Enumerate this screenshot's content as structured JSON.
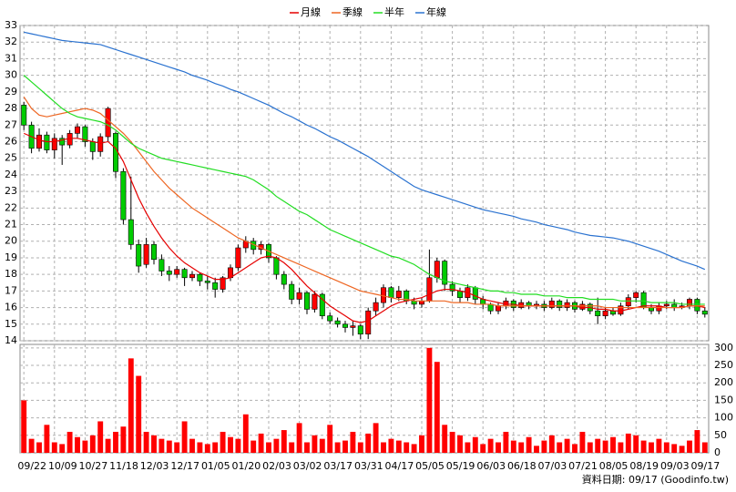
{
  "chart_data": [
    {
      "type": "candlestick",
      "categories": [
        "09/22",
        null,
        null,
        null,
        "10/09",
        null,
        null,
        null,
        "10/27",
        null,
        null,
        null,
        "11/18",
        null,
        null,
        null,
        "12/03",
        null,
        null,
        null,
        "12/17",
        null,
        null,
        null,
        "01/05",
        null,
        null,
        null,
        "01/20",
        null,
        null,
        null,
        "02/03",
        null,
        null,
        null,
        "03/02",
        null,
        null,
        null,
        "03/17",
        null,
        null,
        null,
        "03/31",
        null,
        null,
        null,
        "04/17",
        null,
        null,
        null,
        "05/05",
        null,
        null,
        null,
        "05/19",
        null,
        null,
        null,
        "06/03",
        null,
        null,
        null,
        "06/18",
        null,
        null,
        null,
        "07/03",
        null,
        null,
        null,
        "07/21",
        null,
        null,
        null,
        "08/05",
        null,
        null,
        null,
        "08/19",
        null,
        null,
        null,
        "09/03",
        null,
        null,
        null,
        "09/17",
        null
      ],
      "open": [
        28.2,
        27.0,
        25.6,
        26.4,
        25.5,
        26.2,
        25.8,
        26.5,
        26.9,
        26.0,
        25.4,
        26.3,
        26.5,
        24.2,
        21.3,
        19.8,
        18.6,
        19.8,
        18.9,
        18.2,
        18.0,
        18.3,
        17.8,
        18.0,
        17.6,
        17.5,
        17.1,
        17.8,
        18.4,
        19.6,
        20.0,
        19.5,
        19.8,
        19.0,
        18.0,
        17.4,
        16.5,
        16.9,
        15.9,
        16.8,
        15.5,
        15.2,
        15.0,
        14.8,
        14.9,
        14.4,
        15.8,
        16.3,
        17.2,
        16.6,
        17.0,
        16.4,
        16.2,
        16.4,
        17.8,
        18.8,
        17.4,
        17.0,
        16.6,
        17.2,
        16.5,
        16.2,
        15.8,
        16.1,
        16.4,
        16.0,
        16.3,
        16.1,
        16.2,
        16.0,
        16.4,
        16.0,
        16.3,
        15.9,
        16.2,
        15.8,
        15.5,
        15.8,
        15.6,
        16.1,
        16.6,
        16.9,
        16.0,
        15.8,
        16.1,
        16.2,
        16.0,
        16.1,
        16.5,
        15.8
      ],
      "high": [
        28.4,
        27.2,
        26.8,
        26.6,
        26.5,
        26.4,
        26.7,
        27.1,
        27.0,
        26.2,
        26.5,
        28.1,
        26.6,
        24.4,
        23.9,
        20.1,
        20.2,
        20.0,
        19.2,
        18.5,
        18.5,
        18.4,
        18.2,
        18.1,
        17.9,
        17.8,
        17.9,
        18.6,
        19.8,
        20.3,
        20.2,
        20.0,
        19.9,
        19.1,
        18.2,
        17.6,
        17.2,
        17.0,
        17.0,
        16.9,
        15.7,
        15.4,
        15.2,
        15.2,
        15.0,
        16.0,
        16.6,
        17.4,
        17.3,
        17.3,
        17.1,
        16.6,
        16.6,
        19.5,
        19.0,
        18.9,
        17.6,
        17.2,
        17.4,
        17.3,
        16.7,
        16.3,
        16.3,
        16.6,
        16.5,
        16.5,
        16.4,
        16.4,
        16.4,
        16.6,
        16.5,
        16.5,
        16.4,
        16.4,
        16.3,
        16.6,
        16.0,
        16.0,
        16.3,
        16.8,
        17.0,
        17.0,
        16.2,
        16.3,
        16.4,
        16.5,
        16.3,
        16.6,
        16.6,
        16.0
      ],
      "low": [
        26.7,
        25.3,
        25.4,
        25.3,
        25.0,
        24.6,
        25.6,
        26.2,
        25.7,
        24.9,
        25.1,
        26.0,
        23.8,
        21.0,
        19.5,
        18.1,
        18.4,
        18.6,
        17.9,
        17.6,
        17.8,
        17.3,
        17.6,
        17.3,
        17.1,
        16.6,
        16.9,
        17.6,
        18.2,
        19.3,
        19.2,
        19.2,
        18.7,
        17.7,
        17.1,
        16.2,
        16.2,
        15.6,
        15.7,
        15.3,
        15.0,
        14.8,
        14.5,
        14.3,
        14.1,
        14.1,
        15.5,
        16.0,
        16.3,
        16.4,
        16.2,
        15.9,
        16.0,
        16.3,
        17.5,
        17.0,
        16.7,
        16.3,
        16.4,
        16.2,
        15.9,
        15.6,
        15.6,
        15.9,
        15.8,
        15.9,
        15.9,
        15.9,
        15.8,
        15.9,
        15.8,
        15.8,
        15.7,
        15.8,
        15.6,
        15.0,
        15.3,
        15.5,
        15.5,
        15.9,
        16.3,
        15.9,
        15.6,
        15.6,
        15.9,
        15.8,
        15.9,
        15.9,
        15.6,
        15.4
      ],
      "close": [
        27.0,
        25.6,
        26.4,
        25.5,
        26.2,
        25.8,
        26.5,
        26.9,
        26.0,
        25.4,
        26.3,
        28.0,
        24.2,
        21.3,
        19.8,
        18.5,
        19.8,
        18.9,
        18.2,
        18.0,
        18.3,
        17.8,
        18.0,
        17.6,
        17.5,
        17.1,
        17.8,
        18.4,
        19.6,
        20.0,
        19.5,
        19.8,
        19.0,
        18.0,
        17.4,
        16.5,
        16.9,
        15.9,
        16.8,
        15.5,
        15.2,
        15.0,
        14.8,
        14.9,
        14.4,
        15.8,
        16.3,
        17.2,
        16.6,
        17.0,
        16.4,
        16.2,
        16.4,
        17.8,
        18.8,
        17.4,
        17.0,
        16.6,
        17.2,
        16.5,
        16.2,
        15.8,
        16.1,
        16.4,
        16.0,
        16.3,
        16.1,
        16.2,
        16.0,
        16.4,
        16.0,
        16.3,
        15.9,
        16.2,
        15.8,
        15.5,
        15.8,
        15.6,
        16.1,
        16.6,
        16.9,
        16.0,
        15.8,
        16.1,
        16.2,
        16.0,
        16.1,
        16.5,
        15.8,
        15.6
      ],
      "up_color": "#ff0000",
      "down_color": "#00cc00",
      "series": [
        {
          "name": "月線",
          "color": "#e60000",
          "values": [
            26.5,
            26.3,
            26.1,
            26.0,
            26.0,
            26.1,
            26.2,
            26.2,
            26.1,
            26.0,
            25.9,
            26.0,
            25.6,
            24.8,
            23.7,
            22.6,
            21.7,
            20.9,
            20.2,
            19.6,
            19.1,
            18.7,
            18.4,
            18.1,
            17.9,
            17.7,
            17.7,
            17.8,
            18.1,
            18.4,
            18.7,
            19.0,
            19.1,
            19.0,
            18.7,
            18.3,
            17.8,
            17.3,
            16.9,
            16.5,
            16.1,
            15.8,
            15.5,
            15.2,
            15.1,
            15.2,
            15.5,
            15.8,
            16.1,
            16.3,
            16.4,
            16.5,
            16.6,
            16.8,
            17.0,
            17.1,
            17.1,
            17.0,
            16.9,
            16.7,
            16.5,
            16.4,
            16.3,
            16.2,
            16.2,
            16.1,
            16.1,
            16.1,
            16.1,
            16.1,
            16.1,
            16.1,
            16.1,
            16.0,
            16.0,
            15.9,
            15.9,
            15.8,
            15.8,
            15.9,
            16.0,
            16.1,
            16.1,
            16.1,
            16.0,
            16.0,
            16.0,
            16.1,
            16.1,
            16.0
          ]
        },
        {
          "name": "季線",
          "color": "#ee6622",
          "values": [
            28.7,
            28.0,
            27.6,
            27.5,
            27.6,
            27.7,
            27.8,
            27.9,
            28.0,
            27.9,
            27.7,
            27.3,
            26.9,
            26.5,
            26.0,
            25.4,
            24.8,
            24.2,
            23.7,
            23.2,
            22.8,
            22.4,
            22.0,
            21.7,
            21.4,
            21.1,
            20.8,
            20.5,
            20.2,
            20.0,
            19.8,
            19.6,
            19.4,
            19.2,
            19.0,
            18.8,
            18.6,
            18.4,
            18.2,
            18.0,
            17.8,
            17.6,
            17.4,
            17.2,
            17.0,
            16.9,
            16.8,
            16.7,
            16.6,
            16.5,
            16.5,
            16.4,
            16.4,
            16.4,
            16.4,
            16.4,
            16.3,
            16.3,
            16.3,
            16.2,
            16.2,
            16.2,
            16.1,
            16.1,
            16.1,
            16.1,
            16.1,
            16.1,
            16.1,
            16.1,
            16.1,
            16.1,
            16.1,
            16.1,
            16.1,
            16.1,
            16.0,
            16.0,
            16.0,
            16.0,
            16.0,
            16.0,
            16.0,
            16.0,
            16.0,
            16.0,
            16.0,
            16.1,
            16.1,
            16.1
          ]
        },
        {
          "name": "半年",
          "color": "#22dd22",
          "values": [
            30.0,
            29.6,
            29.2,
            28.8,
            28.4,
            28.0,
            27.7,
            27.5,
            27.4,
            27.3,
            27.2,
            27.0,
            26.7,
            26.3,
            25.9,
            25.6,
            25.4,
            25.2,
            25.0,
            24.9,
            24.8,
            24.7,
            24.6,
            24.5,
            24.4,
            24.3,
            24.2,
            24.1,
            24.0,
            23.9,
            23.7,
            23.4,
            23.1,
            22.7,
            22.4,
            22.1,
            21.8,
            21.6,
            21.3,
            21.0,
            20.7,
            20.5,
            20.3,
            20.1,
            19.9,
            19.7,
            19.5,
            19.3,
            19.1,
            19.0,
            18.8,
            18.6,
            18.3,
            18.0,
            17.8,
            17.6,
            17.5,
            17.4,
            17.3,
            17.2,
            17.1,
            17.0,
            17.0,
            16.9,
            16.9,
            16.8,
            16.8,
            16.8,
            16.7,
            16.7,
            16.7,
            16.6,
            16.6,
            16.6,
            16.5,
            16.5,
            16.5,
            16.5,
            16.4,
            16.4,
            16.4,
            16.4,
            16.3,
            16.3,
            16.3,
            16.3,
            16.2,
            16.2,
            16.2,
            16.2
          ]
        },
        {
          "name": "年線",
          "color": "#2a72d0",
          "values": [
            32.6,
            32.5,
            32.4,
            32.3,
            32.2,
            32.1,
            32.05,
            32.0,
            31.95,
            31.9,
            31.85,
            31.7,
            31.55,
            31.4,
            31.25,
            31.1,
            30.95,
            30.8,
            30.65,
            30.5,
            30.35,
            30.2,
            30.0,
            29.85,
            29.7,
            29.5,
            29.35,
            29.15,
            29.0,
            28.8,
            28.6,
            28.4,
            28.2,
            27.95,
            27.7,
            27.5,
            27.25,
            27.0,
            26.8,
            26.55,
            26.3,
            26.1,
            25.85,
            25.6,
            25.35,
            25.1,
            24.8,
            24.5,
            24.2,
            23.9,
            23.6,
            23.3,
            23.1,
            22.95,
            22.8,
            22.65,
            22.5,
            22.35,
            22.2,
            22.05,
            21.9,
            21.8,
            21.7,
            21.6,
            21.5,
            21.35,
            21.25,
            21.15,
            21.0,
            20.9,
            20.8,
            20.7,
            20.55,
            20.45,
            20.35,
            20.3,
            20.25,
            20.2,
            20.1,
            20.0,
            19.85,
            19.7,
            19.55,
            19.4,
            19.2,
            19.0,
            18.8,
            18.65,
            18.5,
            18.3
          ]
        }
      ],
      "ylim": [
        14,
        33
      ],
      "yticks": [
        14,
        15,
        16,
        17,
        18,
        19,
        20,
        21,
        22,
        23,
        24,
        25,
        26,
        27,
        28,
        29,
        30,
        31,
        32,
        33
      ],
      "grid": true,
      "legend": "top"
    },
    {
      "type": "bar",
      "values": [
        150,
        40,
        30,
        80,
        30,
        25,
        60,
        45,
        35,
        50,
        90,
        40,
        60,
        75,
        270,
        220,
        60,
        50,
        40,
        35,
        30,
        90,
        40,
        30,
        25,
        30,
        60,
        45,
        40,
        110,
        35,
        55,
        30,
        40,
        65,
        30,
        85,
        30,
        50,
        40,
        80,
        30,
        35,
        60,
        30,
        55,
        85,
        30,
        40,
        35,
        30,
        25,
        50,
        300,
        260,
        80,
        60,
        50,
        30,
        45,
        25,
        40,
        30,
        60,
        35,
        30,
        45,
        20,
        35,
        50,
        30,
        40,
        25,
        60,
        30,
        40,
        35,
        45,
        30,
        55,
        50,
        35,
        30,
        40,
        30,
        25,
        20,
        35,
        65,
        30
      ],
      "color": "#ff0000",
      "ylim": [
        0,
        310
      ],
      "yticks": [
        0,
        50,
        100,
        150,
        200,
        250,
        300
      ],
      "grid": true
    }
  ],
  "footer": "資料日期: 09/17 (Goodinfo.tw)"
}
